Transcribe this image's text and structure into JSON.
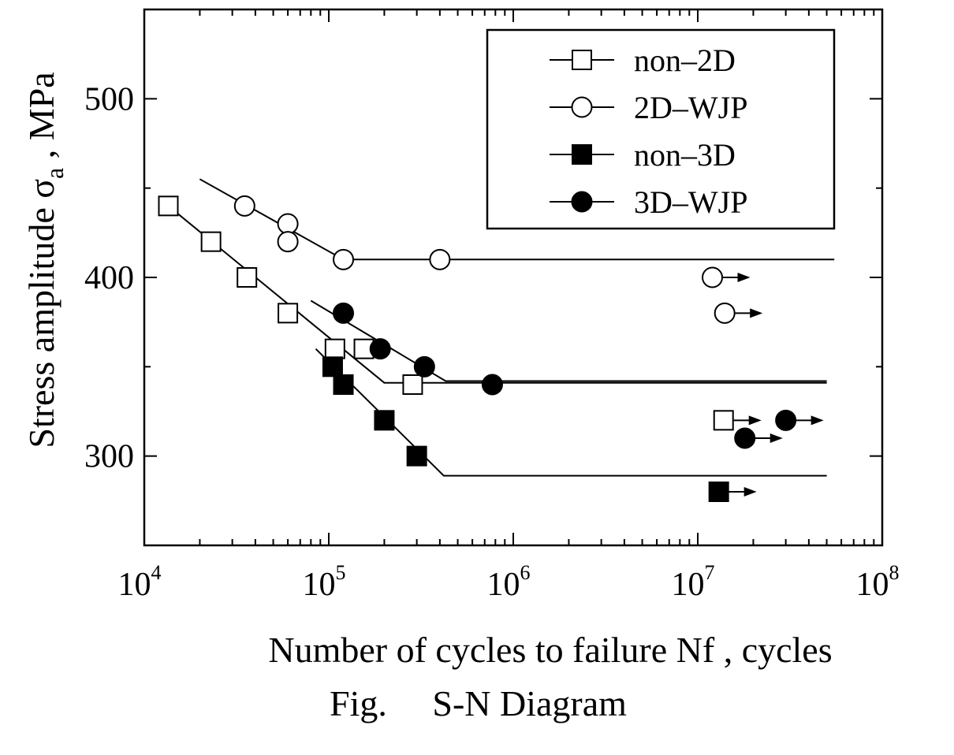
{
  "caption": "Fig.     S-N Diagram",
  "chart_data": {
    "type": "scatter",
    "title": "",
    "xlabel": "Number of cycles to failure  Nf , cycles",
    "ylabel_main": "Stress amplitude σ",
    "ylabel_sub": "a",
    "ylabel_unit": " , MPa",
    "xscale": "log",
    "xlim": [
      10000,
      100000000
    ],
    "ylim": [
      250,
      550
    ],
    "x_ticks": [
      {
        "base": "10",
        "exp": "4",
        "value": 10000
      },
      {
        "base": "10",
        "exp": "5",
        "value": 100000
      },
      {
        "base": "10",
        "exp": "6",
        "value": 1000000
      },
      {
        "base": "10",
        "exp": "7",
        "value": 10000000
      },
      {
        "base": "10",
        "exp": "8",
        "value": 100000000
      }
    ],
    "y_ticks": [
      300,
      400,
      500
    ],
    "legend_position": "top-right",
    "series": [
      {
        "name": "non–2D",
        "marker": "square-open",
        "points": [
          [
            13500,
            440
          ],
          [
            23000,
            420
          ],
          [
            36000,
            400
          ],
          [
            60000,
            380
          ],
          [
            108000,
            360
          ],
          [
            155000,
            360
          ],
          [
            285000,
            340
          ]
        ],
        "runouts": [
          [
            13800000,
            320
          ]
        ],
        "fit": [
          [
            13500,
            440
          ],
          [
            200000,
            341
          ],
          [
            50000000,
            341
          ]
        ]
      },
      {
        "name": "2D–WJP",
        "marker": "circle-open",
        "points": [
          [
            35000,
            440
          ],
          [
            60000,
            430
          ],
          [
            60000,
            420
          ],
          [
            120000,
            410
          ],
          [
            400000,
            410
          ]
        ],
        "runouts": [
          [
            12000000,
            400
          ],
          [
            14000000,
            380
          ]
        ],
        "fit": [
          [
            20000,
            455
          ],
          [
            120000,
            410
          ],
          [
            55000000,
            410
          ]
        ]
      },
      {
        "name": "non–3D",
        "marker": "square-filled",
        "points": [
          [
            105000,
            350
          ],
          [
            120000,
            340
          ],
          [
            200000,
            320
          ],
          [
            300000,
            300
          ]
        ],
        "runouts": [
          [
            13000000,
            280
          ]
        ],
        "fit": [
          [
            85000,
            360
          ],
          [
            420000,
            289
          ],
          [
            50000000,
            289
          ]
        ]
      },
      {
        "name": "3D–WJP",
        "marker": "circle-filled",
        "points": [
          [
            120000,
            380
          ],
          [
            190000,
            360
          ],
          [
            330000,
            350
          ],
          [
            770000,
            340
          ]
        ],
        "runouts": [
          [
            30000000,
            320
          ],
          [
            18000000,
            310
          ]
        ],
        "fit": [
          [
            80000,
            387
          ],
          [
            430000,
            342
          ],
          [
            50000000,
            342
          ]
        ]
      }
    ]
  }
}
